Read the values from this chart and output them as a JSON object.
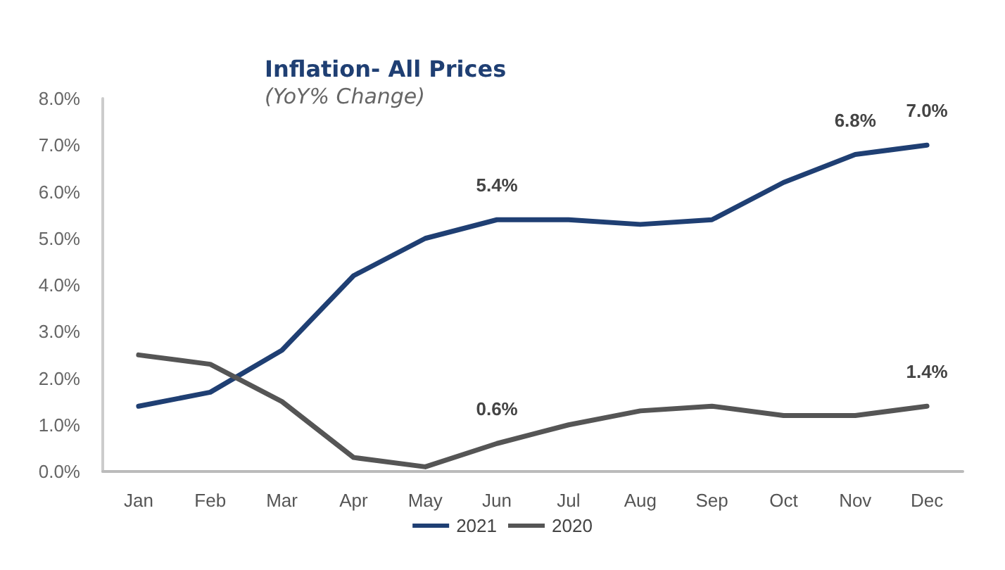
{
  "chart_data": {
    "type": "line",
    "title": "Inflation- All Prices",
    "subtitle": "(YoY% Change)",
    "categories": [
      "Jan",
      "Feb",
      "Mar",
      "Apr",
      "May",
      "Jun",
      "Jul",
      "Aug",
      "Sep",
      "Oct",
      "Nov",
      "Dec"
    ],
    "series": [
      {
        "name": "2021",
        "color": "#1f3f73",
        "values": [
          1.4,
          1.7,
          2.6,
          4.2,
          5.0,
          5.4,
          5.4,
          5.3,
          5.4,
          6.2,
          6.8,
          7.0
        ],
        "value_labels": [
          null,
          null,
          null,
          null,
          null,
          "5.4%",
          null,
          null,
          null,
          null,
          "6.8%",
          "7.0%"
        ]
      },
      {
        "name": "2020",
        "color": "#555555",
        "values": [
          2.5,
          2.3,
          1.5,
          0.3,
          0.1,
          0.6,
          1.0,
          1.3,
          1.4,
          1.2,
          1.2,
          1.4
        ],
        "value_labels": [
          null,
          null,
          null,
          null,
          null,
          "0.6%",
          null,
          null,
          null,
          null,
          null,
          "1.4%"
        ]
      }
    ],
    "ylim": [
      0,
      8
    ],
    "yticks": [
      {
        "value": 0,
        "label": "0.0%"
      },
      {
        "value": 1,
        "label": "1.0%"
      },
      {
        "value": 2,
        "label": "2.0%"
      },
      {
        "value": 3,
        "label": "3.0%"
      },
      {
        "value": 4,
        "label": "4.0%"
      },
      {
        "value": 5,
        "label": "5.0%"
      },
      {
        "value": 6,
        "label": "6.0%"
      },
      {
        "value": 7,
        "label": "7.0%"
      },
      {
        "value": 8,
        "label": "8.0%"
      }
    ],
    "grid": false,
    "legend": "bottom",
    "marker": "none",
    "line_style": "solid"
  }
}
